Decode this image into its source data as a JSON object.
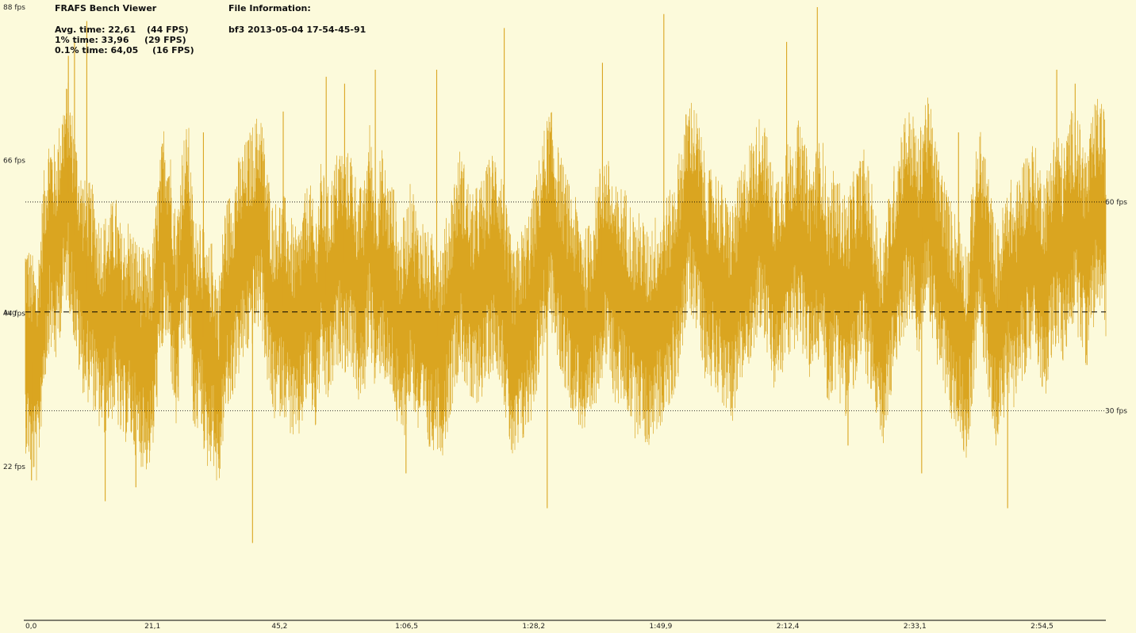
{
  "app_title": "FRAFS Bench Viewer",
  "file_info_label": "File Information:",
  "file_name": "bf3 2013-05-04 17-54-45-91",
  "stats": [
    {
      "label": "Avg. time: 22,61",
      "fps": "(44 FPS)"
    },
    {
      "label": "1% time: 33,96",
      "fps": "(29 FPS)"
    },
    {
      "label": "0.1% time: 64,05",
      "fps": "(16 FPS)"
    }
  ],
  "colors": {
    "background": "#fcfadb",
    "series": "#daa520",
    "axis": "#000000"
  },
  "chart_data": {
    "type": "line",
    "ylim": [
      0,
      88
    ],
    "xlim_seconds": [
      0,
      176
    ],
    "y_ticks": [
      {
        "value": 88,
        "label": "88 fps"
      },
      {
        "value": 66,
        "label": "66 fps"
      },
      {
        "value": 44,
        "label": "44 fps"
      },
      {
        "value": 22,
        "label": "22 fps"
      }
    ],
    "x_ticks": [
      {
        "value": 0,
        "label": "0,0"
      },
      {
        "value": 20.7,
        "label": "21,1"
      },
      {
        "value": 41.4,
        "label": "45,2"
      },
      {
        "value": 62.1,
        "label": "1:06,5"
      },
      {
        "value": 82.8,
        "label": "1:28,2"
      },
      {
        "value": 103.5,
        "label": "1:49,9"
      },
      {
        "value": 124.2,
        "label": "2:12,4"
      },
      {
        "value": 144.9,
        "label": "2:33,1"
      },
      {
        "value": 165.6,
        "label": "2:54,5"
      }
    ],
    "reference_lines": [
      {
        "value": 60,
        "label": "60 fps",
        "style": "dotted"
      },
      {
        "value": 30,
        "label": "30 fps",
        "style": "dotted"
      },
      {
        "value": 44.2,
        "label": "Avg",
        "style": "dashed"
      }
    ],
    "series": [
      {
        "fps": [
          40,
          37,
          35,
          48,
          55,
          52,
          58,
          62,
          56,
          50,
          47,
          47,
          43,
          42,
          44,
          45,
          40,
          42,
          40,
          38,
          37,
          38,
          48,
          56,
          52,
          42,
          53,
          56,
          41,
          44,
          37,
          39,
          33,
          44,
          46,
          50,
          52,
          54,
          56,
          58,
          50,
          44,
          45,
          45,
          42,
          40,
          44,
          48,
          42,
          50,
          46,
          49,
          53,
          51,
          52,
          47,
          46,
          56,
          47,
          52,
          48,
          47,
          40,
          43,
          48,
          42,
          42,
          39,
          41,
          39,
          43,
          48,
          52,
          49,
          45,
          47,
          48,
          51,
          52,
          49,
          41,
          37,
          40,
          42,
          45,
          50,
          55,
          58,
          53,
          50,
          47,
          45,
          43,
          40,
          44,
          49,
          52,
          49,
          46,
          47,
          45,
          42,
          43,
          40,
          42,
          43,
          45,
          46,
          50,
          55,
          60,
          58,
          54,
          48,
          50,
          48,
          45,
          44,
          47,
          50,
          53,
          55,
          58,
          53,
          48,
          50,
          52,
          54,
          56,
          53,
          50,
          52,
          54,
          46,
          49,
          47,
          45,
          48,
          50,
          52,
          48,
          42,
          40,
          45,
          50,
          55,
          58,
          57,
          53,
          60,
          58,
          52,
          49,
          45,
          43,
          42,
          38,
          48,
          55,
          52,
          45,
          40,
          44,
          48,
          46,
          50,
          52,
          53,
          50,
          48,
          53,
          55,
          52,
          57,
          58,
          54,
          52,
          58,
          60,
          56
        ],
        "spikes": [
          {
            "t": 1,
            "v": 20
          },
          {
            "t": 7,
            "v": 81
          },
          {
            "t": 8,
            "v": 83
          },
          {
            "t": 10,
            "v": 86
          },
          {
            "t": 13,
            "v": 17
          },
          {
            "t": 18,
            "v": 19
          },
          {
            "t": 29,
            "v": 70
          },
          {
            "t": 37,
            "v": 11
          },
          {
            "t": 42,
            "v": 73
          },
          {
            "t": 49,
            "v": 78
          },
          {
            "t": 52,
            "v": 77
          },
          {
            "t": 57,
            "v": 79
          },
          {
            "t": 62,
            "v": 21
          },
          {
            "t": 67,
            "v": 79
          },
          {
            "t": 78,
            "v": 85
          },
          {
            "t": 85,
            "v": 16
          },
          {
            "t": 94,
            "v": 80
          },
          {
            "t": 104,
            "v": 87
          },
          {
            "t": 124,
            "v": 83
          },
          {
            "t": 129,
            "v": 88
          },
          {
            "t": 134,
            "v": 25
          },
          {
            "t": 146,
            "v": 21
          },
          {
            "t": 152,
            "v": 70
          },
          {
            "t": 160,
            "v": 16
          },
          {
            "t": 168,
            "v": 79
          },
          {
            "t": 171,
            "v": 77
          }
        ]
      }
    ]
  }
}
